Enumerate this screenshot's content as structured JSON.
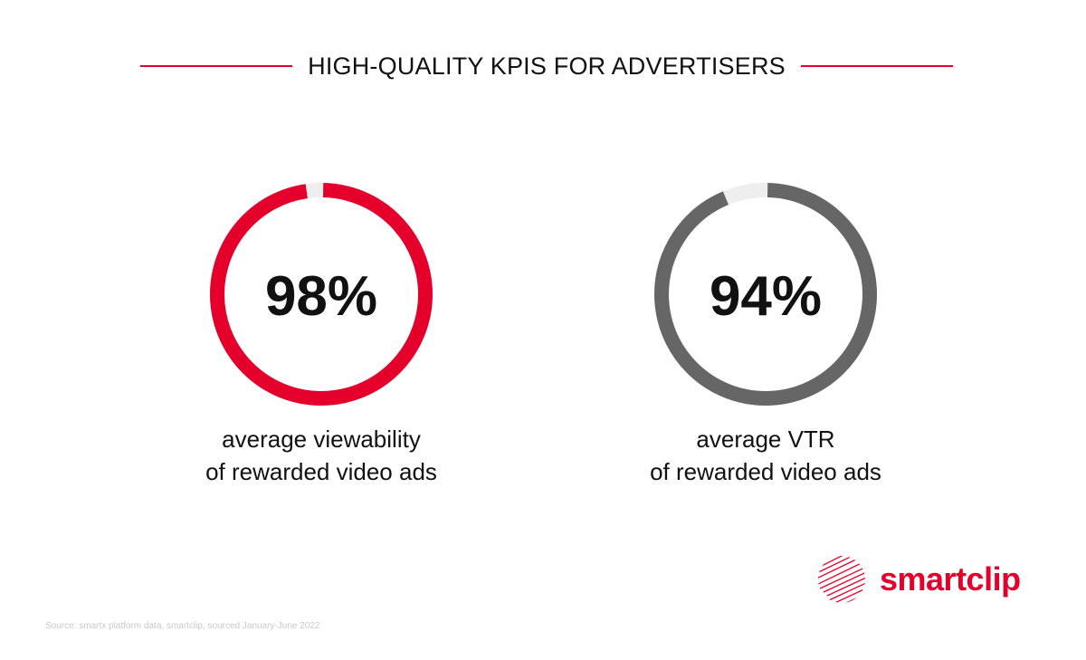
{
  "header": {
    "title": "HIGH-QUALITY KPIS FOR ADVERTISERS"
  },
  "colors": {
    "accent": "#e4002b",
    "secondary": "#666666",
    "track": "#eeeeee"
  },
  "chart_data": [
    {
      "type": "pie",
      "value": 98,
      "max": 100,
      "value_label": "98%",
      "caption_lines": [
        "average viewability",
        "of rewarded video ads"
      ],
      "color": "#e4002b",
      "track_color": "#eeeeee"
    },
    {
      "type": "pie",
      "value": 94,
      "max": 100,
      "value_label": "94%",
      "caption_lines": [
        "average VTR",
        "of rewarded video ads"
      ],
      "color": "#666666",
      "track_color": "#eeeeee"
    }
  ],
  "footer": {
    "source": "Source: smartx platform data, smartclip, sourced January-June 2022"
  },
  "logo": {
    "text": "smartclip",
    "icon": "smartclip-logo-icon"
  }
}
